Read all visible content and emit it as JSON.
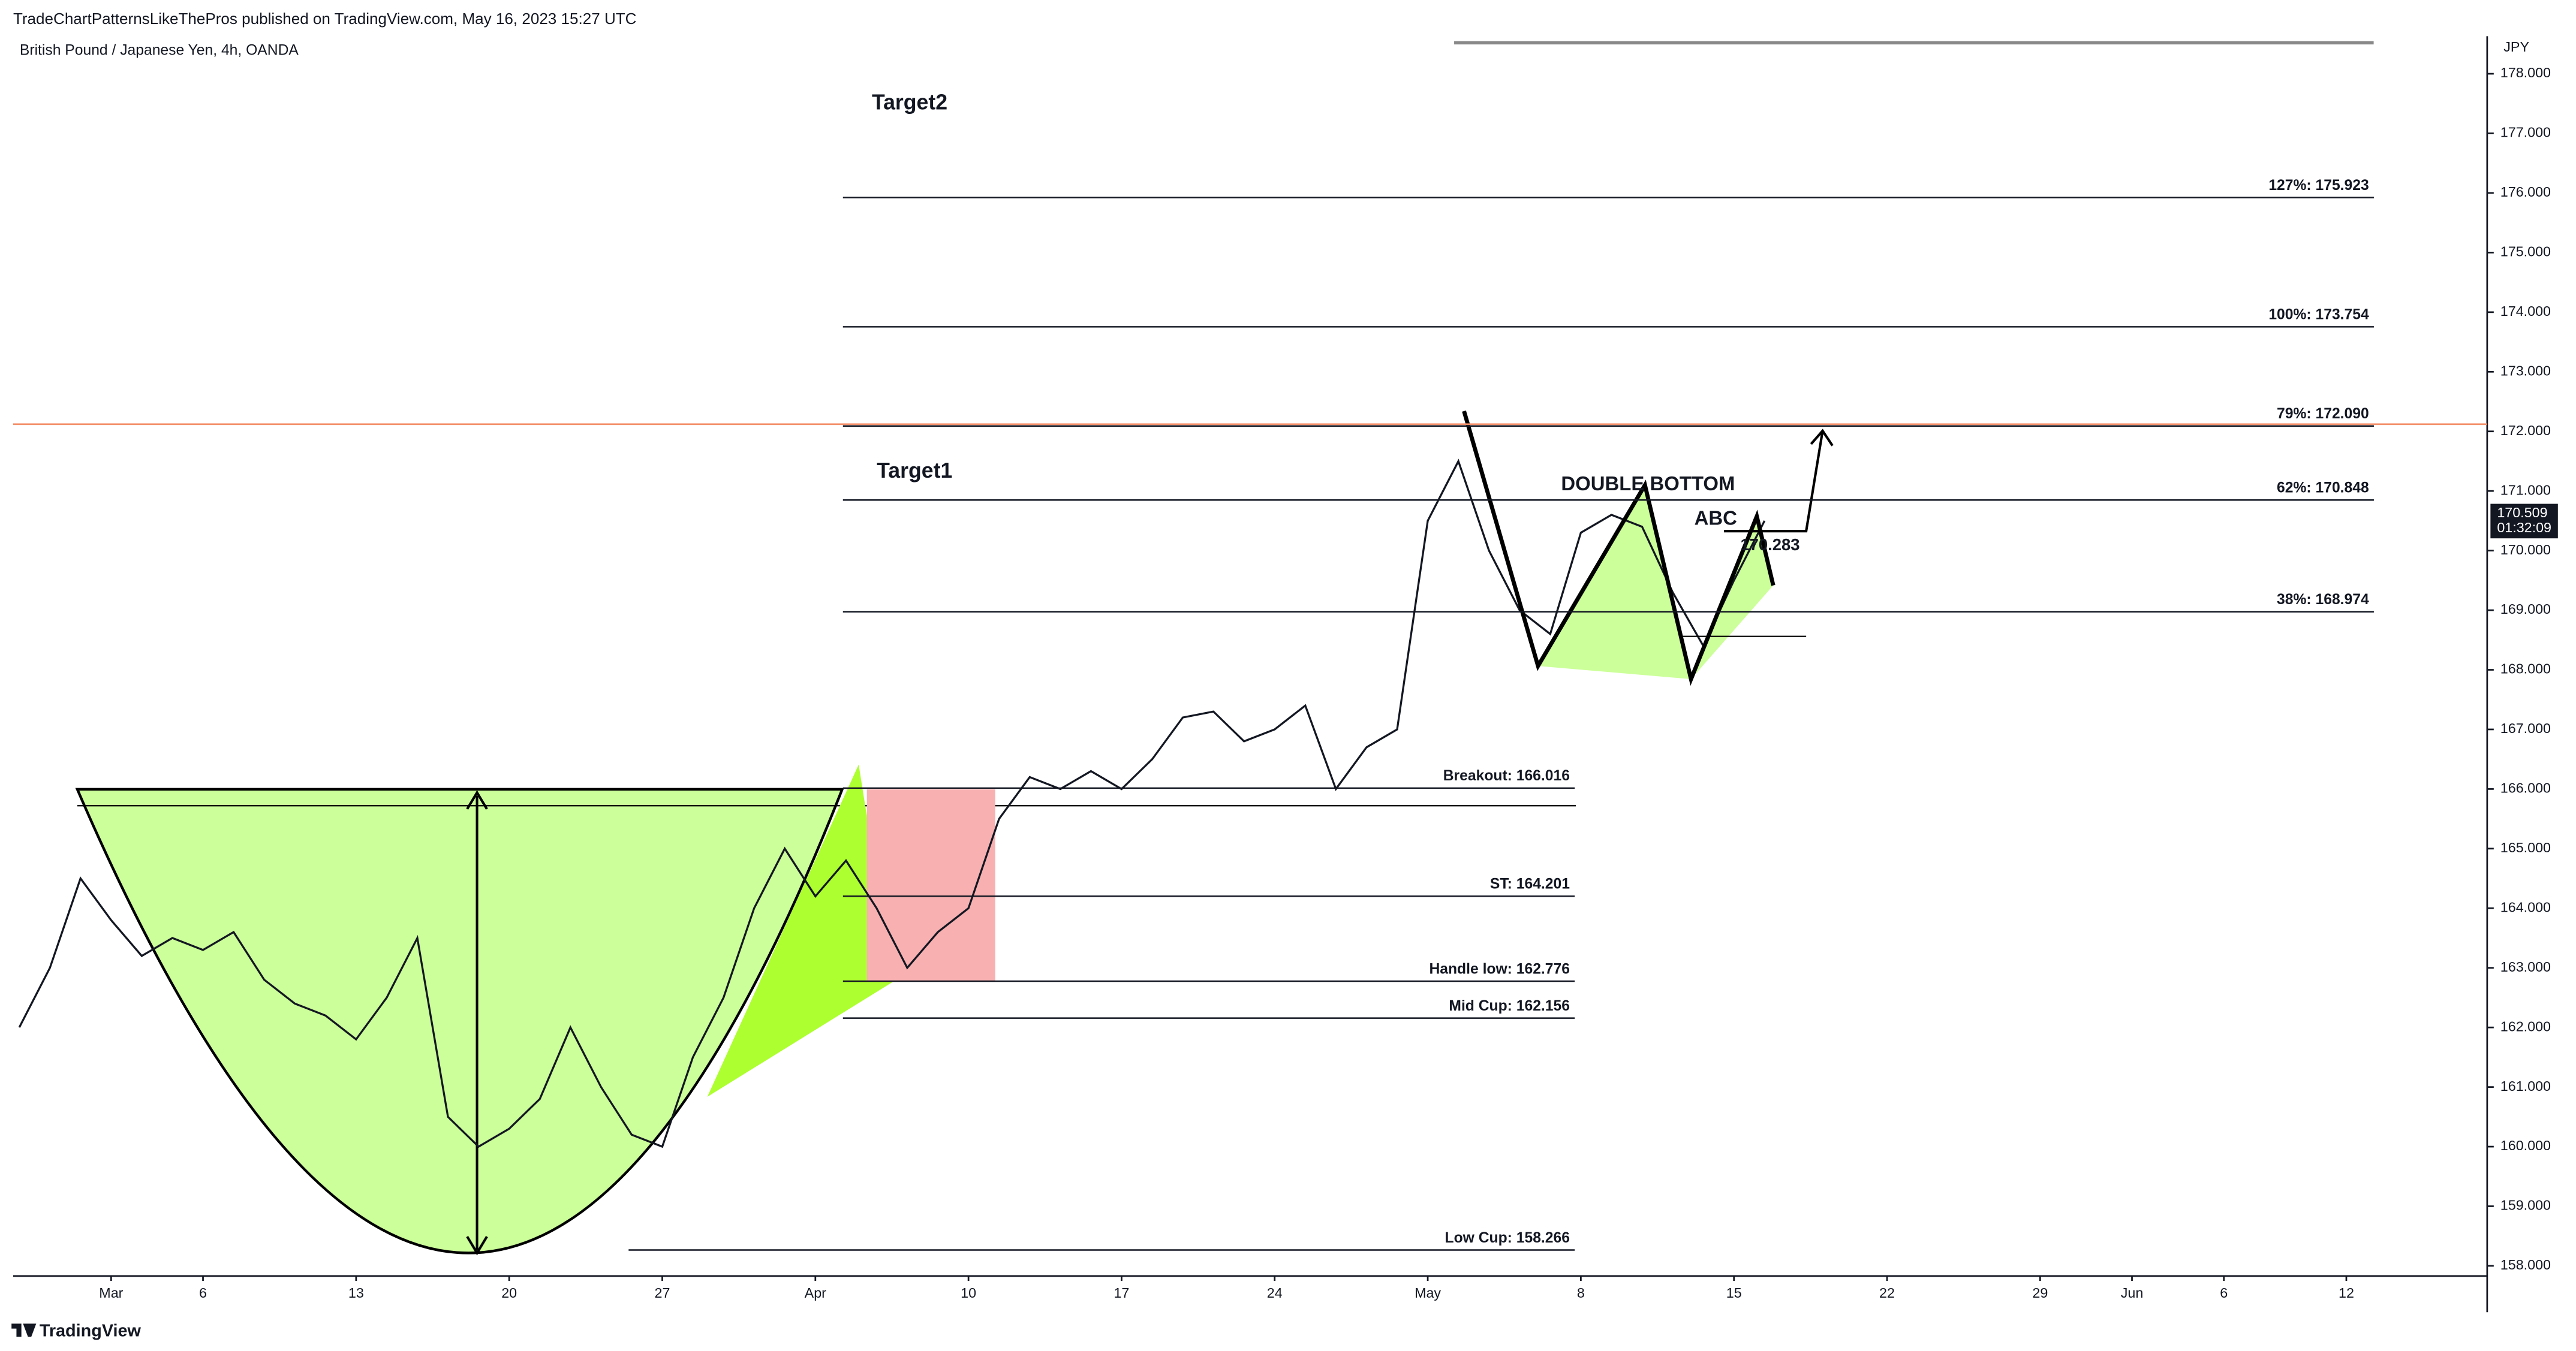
{
  "chart_data": {
    "type": "line",
    "header": "TradeChartPatternsLikeThePros published on TradingView.com, May 16, 2023 15:27 UTC",
    "title": "British Pound / Japanese Yen, 4h, OANDA",
    "y_unit": "JPY",
    "brand": "TradingView",
    "color": "#131722",
    "x": [
      -3,
      -2,
      -1,
      0,
      1,
      2,
      3,
      4,
      5,
      6,
      7,
      8,
      9,
      10,
      11,
      12,
      13,
      14,
      15,
      16,
      17,
      18,
      19,
      20,
      21,
      22,
      23,
      24,
      25,
      26,
      27,
      28,
      29,
      30,
      31,
      32,
      33,
      34,
      35,
      36,
      37,
      38,
      39,
      40,
      41,
      42,
      43,
      44,
      45,
      46,
      47,
      48,
      49,
      50,
      51,
      52,
      53,
      54
    ],
    "values": [
      162.0,
      163.0,
      164.5,
      163.8,
      163.2,
      163.5,
      163.3,
      163.6,
      162.8,
      162.4,
      162.2,
      161.8,
      162.5,
      163.5,
      160.5,
      160.0,
      160.3,
      160.8,
      162.0,
      161.0,
      160.2,
      160.0,
      161.5,
      162.5,
      164.0,
      165.0,
      164.2,
      164.8,
      164.0,
      163.0,
      163.6,
      164.0,
      165.5,
      166.2,
      166.0,
      166.3,
      166.0,
      166.5,
      167.2,
      167.3,
      166.8,
      167.0,
      167.4,
      166.0,
      166.7,
      167.0,
      170.5,
      171.5,
      170.0,
      169.0,
      168.6,
      170.3,
      170.6,
      170.4,
      169.3,
      168.4,
      169.5,
      170.5
    ],
    "xlim": [
      -3.2,
      77.6
    ],
    "ylim": [
      157.83,
      178.63
    ],
    "xticks": [
      {
        "value": 0,
        "label": "Mar"
      },
      {
        "value": 3,
        "label": "6"
      },
      {
        "value": 8,
        "label": "13"
      },
      {
        "value": 13,
        "label": "20"
      },
      {
        "value": 18,
        "label": "27"
      },
      {
        "value": 23,
        "label": "Apr"
      },
      {
        "value": 28,
        "label": "10"
      },
      {
        "value": 33,
        "label": "17"
      },
      {
        "value": 38,
        "label": "24"
      },
      {
        "value": 43,
        "label": "May"
      },
      {
        "value": 48,
        "label": "8"
      },
      {
        "value": 53,
        "label": "15"
      },
      {
        "value": 58,
        "label": "22"
      },
      {
        "value": 63,
        "label": "29"
      },
      {
        "value": 66,
        "label": "Jun"
      },
      {
        "value": 69,
        "label": "6"
      },
      {
        "value": 73,
        "label": "12"
      }
    ],
    "yticks": [
      {
        "value": 158,
        "label": "158.000"
      },
      {
        "value": 159,
        "label": "159.000"
      },
      {
        "value": 160,
        "label": "160.000"
      },
      {
        "value": 161,
        "label": "161.000"
      },
      {
        "value": 162,
        "label": "162.000"
      },
      {
        "value": 163,
        "label": "163.000"
      },
      {
        "value": 164,
        "label": "164.000"
      },
      {
        "value": 165,
        "label": "165.000"
      },
      {
        "value": 166,
        "label": "166.000"
      },
      {
        "value": 167,
        "label": "167.000"
      },
      {
        "value": 168,
        "label": "168.000"
      },
      {
        "value": 169,
        "label": "169.000"
      },
      {
        "value": 170,
        "label": "170.000"
      },
      {
        "value": 171,
        "label": "171.000"
      },
      {
        "value": 172,
        "label": "172.000"
      },
      {
        "value": 173,
        "label": "173.000"
      },
      {
        "value": 174,
        "label": "174.000"
      },
      {
        "value": 175,
        "label": "175.000"
      },
      {
        "value": 176,
        "label": "176.000"
      },
      {
        "value": 177,
        "label": "177.000"
      },
      {
        "value": 178,
        "label": "178.000"
      }
    ],
    "levels": [
      {
        "label": "127%: 175.923",
        "value": 175.923,
        "from": 23.9,
        "to": 73.9
      },
      {
        "label": "100%: 173.754",
        "value": 173.754,
        "from": 23.9,
        "to": 73.9
      },
      {
        "label": "79%: 172.090",
        "value": 172.09,
        "from": 23.9,
        "to": 73.9
      },
      {
        "label": "62%: 170.848",
        "value": 170.848,
        "from": 23.9,
        "to": 73.9
      },
      {
        "label": "38%: 168.974",
        "value": 168.974,
        "from": 23.9,
        "to": 73.9
      },
      {
        "label": "Breakout: 166.016",
        "value": 166.016,
        "from": 23.9,
        "to": 47.8
      },
      {
        "label": "ST: 164.201",
        "value": 164.201,
        "from": 23.9,
        "to": 47.8
      },
      {
        "label": "Handle low: 162.776",
        "value": 162.776,
        "from": 23.9,
        "to": 47.8
      },
      {
        "label": "Mid Cup: 162.156",
        "value": 162.156,
        "from": 23.9,
        "to": 47.8
      },
      {
        "label": "Low Cup: 158.266",
        "value": 158.266,
        "from": 16.9,
        "to": 47.8
      }
    ],
    "resistance_line": {
      "value": 172.12,
      "color": "#f2906b"
    },
    "annotations": [
      "Target2",
      "Target1",
      "DOUBLE BOTTOM",
      "ABC",
      "170.283"
    ],
    "last_price": {
      "value": 170.509,
      "label": "170.509",
      "countdown": "01:32:09"
    }
  }
}
